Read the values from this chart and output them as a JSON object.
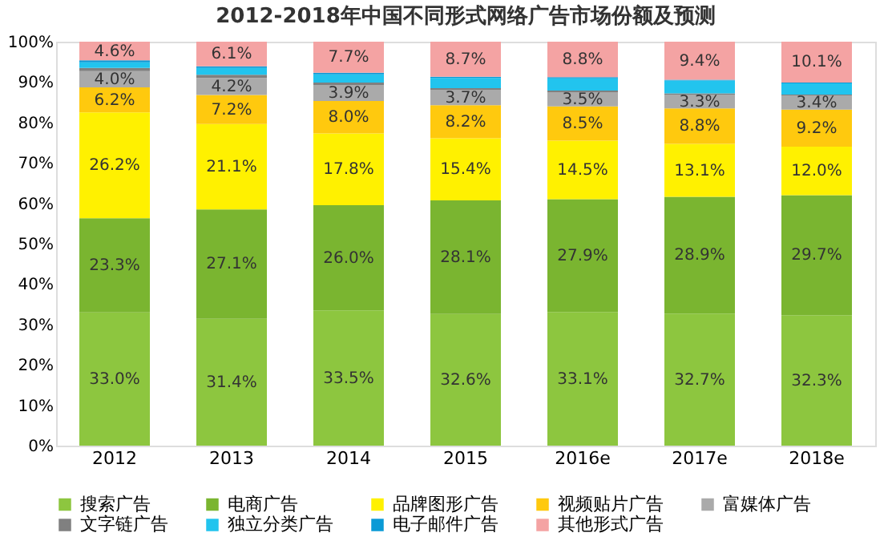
{
  "chart_data": {
    "type": "bar",
    "stacked": true,
    "title": "2012-2018年中国不同形式网络广告市场份额及预测",
    "categories": [
      "2012",
      "2013",
      "2014",
      "2015",
      "2016e",
      "2017e",
      "2018e"
    ],
    "series": [
      {
        "name": "搜索广告",
        "color": "#8dc63f",
        "values": [
          33.0,
          31.4,
          33.5,
          32.6,
          33.1,
          32.7,
          32.3
        ],
        "value_labels": [
          "33.0%",
          "31.4%",
          "33.5%",
          "32.6%",
          "33.1%",
          "32.7%",
          "32.3%"
        ]
      },
      {
        "name": "电商广告",
        "color": "#7ab530",
        "values": [
          23.3,
          27.1,
          26.0,
          28.1,
          27.9,
          28.9,
          29.7
        ],
        "value_labels": [
          "23.3%",
          "27.1%",
          "26.0%",
          "28.1%",
          "27.9%",
          "28.9%",
          "29.7%"
        ]
      },
      {
        "name": "品牌图形广告",
        "color": "#fff100",
        "values": [
          26.2,
          21.1,
          17.8,
          15.4,
          14.5,
          13.1,
          12.0
        ],
        "value_labels": [
          "26.2%",
          "21.1%",
          "17.8%",
          "15.4%",
          "14.5%",
          "13.1%",
          "12.0%"
        ]
      },
      {
        "name": "视频贴片广告",
        "color": "#ffc90e",
        "values": [
          6.2,
          7.2,
          8.0,
          8.2,
          8.5,
          8.8,
          9.2
        ],
        "value_labels": [
          "6.2%",
          "7.2%",
          "8.0%",
          "8.2%",
          "8.5%",
          "8.8%",
          "9.2%"
        ]
      },
      {
        "name": "富媒体广告",
        "color": "#aaaaaa",
        "values": [
          4.0,
          4.2,
          3.9,
          3.7,
          3.5,
          3.3,
          3.4
        ],
        "value_labels": [
          "4.0%",
          "4.2%",
          "3.9%",
          "3.7%",
          "3.5%",
          "3.3%",
          "3.4%"
        ]
      },
      {
        "name": "文字链广告",
        "color": "#808080",
        "values": [
          0.8,
          0.8,
          0.7,
          0.5,
          0.4,
          0.4,
          0.3
        ]
      },
      {
        "name": "独立分类广告",
        "color": "#22c4ee",
        "values": [
          1.4,
          1.7,
          2.0,
          2.5,
          3.0,
          3.2,
          2.8
        ]
      },
      {
        "name": "电子邮件广告",
        "color": "#0a9ad6",
        "values": [
          0.5,
          0.4,
          0.4,
          0.3,
          0.3,
          0.2,
          0.2
        ]
      },
      {
        "name": "其他形式广告",
        "color": "#f4a3a3",
        "values": [
          4.6,
          6.1,
          7.7,
          8.7,
          8.8,
          9.4,
          10.1
        ],
        "value_labels": [
          "4.6%",
          "6.1%",
          "7.7%",
          "8.7%",
          "8.8%",
          "9.4%",
          "10.1%"
        ]
      }
    ],
    "ylim": [
      0,
      100
    ],
    "yticks": [
      {
        "value": 0,
        "label": "0%"
      },
      {
        "value": 10,
        "label": "10%"
      },
      {
        "value": 20,
        "label": "20%"
      },
      {
        "value": 30,
        "label": "30%"
      },
      {
        "value": 40,
        "label": "40%"
      },
      {
        "value": 50,
        "label": "50%"
      },
      {
        "value": 60,
        "label": "60%"
      },
      {
        "value": 70,
        "label": "70%"
      },
      {
        "value": 80,
        "label": "80%"
      },
      {
        "value": 90,
        "label": "90%"
      },
      {
        "value": 100,
        "label": "100%"
      }
    ],
    "grid": false,
    "legend": "bottom"
  }
}
